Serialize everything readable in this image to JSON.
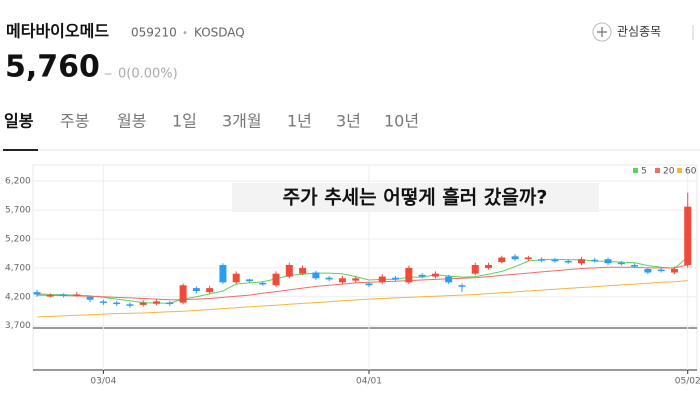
{
  "header": {
    "name": "메타바이오메드",
    "code": "059210",
    "separator": "•",
    "market": "KOSDAQ",
    "watch": "관심종목"
  },
  "quote": {
    "price": "5,760",
    "change_sign": "‒",
    "change": "0(0.00%)"
  },
  "tabs": [
    "일봉",
    "주봉",
    "월봉",
    "1일",
    "3개월",
    "1년",
    "3년",
    "10년"
  ],
  "selected_tab": 0,
  "chart_data": {
    "type": "candlestick",
    "annotation": "주가 추세는 어떻게 흘러 갔을까?",
    "up_color": "#f04a3a",
    "down_color": "#2a9df4",
    "categories": [
      null,
      null,
      null,
      null,
      null,
      "03/04",
      null,
      null,
      null,
      null,
      null,
      null,
      null,
      null,
      null,
      null,
      null,
      null,
      null,
      null,
      null,
      null,
      null,
      null,
      null,
      "04/01",
      null,
      null,
      null,
      null,
      null,
      null,
      null,
      null,
      null,
      null,
      null,
      null,
      null,
      null,
      null,
      null,
      null,
      null,
      null,
      null,
      null,
      null,
      null,
      "05/02"
    ],
    "open": [
      4280,
      4210,
      4240,
      4220,
      4200,
      4120,
      4100,
      4070,
      4060,
      4080,
      4100,
      4100,
      4350,
      4280,
      4750,
      4450,
      4500,
      4440,
      4400,
      4550,
      4600,
      4620,
      4530,
      4450,
      4480,
      4430,
      4450,
      4530,
      4450,
      4580,
      4550,
      4550,
      4400,
      4600,
      4700,
      4800,
      4900,
      4850,
      4850,
      4840,
      4820,
      4780,
      4840,
      4850,
      4790,
      4750,
      4680,
      4670,
      4620,
      4750
    ],
    "close": [
      4240,
      4230,
      4220,
      4240,
      4150,
      4100,
      4080,
      4050,
      4100,
      4120,
      4080,
      4400,
      4300,
      4350,
      4450,
      4600,
      4470,
      4420,
      4600,
      4750,
      4700,
      4520,
      4500,
      4520,
      4520,
      4400,
      4550,
      4500,
      4700,
      4550,
      4600,
      4450,
      4380,
      4750,
      4750,
      4880,
      4850,
      4880,
      4830,
      4820,
      4800,
      4850,
      4820,
      4780,
      4770,
      4730,
      4620,
      4650,
      4680,
      5760
    ],
    "high": [
      4320,
      4260,
      4260,
      4280,
      4220,
      4150,
      4130,
      4100,
      4140,
      4160,
      4130,
      4430,
      4380,
      4390,
      4780,
      4640,
      4510,
      4460,
      4640,
      4790,
      4740,
      4650,
      4560,
      4560,
      4560,
      4460,
      4590,
      4560,
      4740,
      4610,
      4640,
      4580,
      4430,
      4790,
      4790,
      4910,
      4940,
      4910,
      4880,
      4870,
      4850,
      4890,
      4870,
      4880,
      4820,
      4780,
      4710,
      4700,
      4720,
      6000
    ],
    "low": [
      4200,
      4190,
      4190,
      4200,
      4110,
      4060,
      4040,
      4010,
      4030,
      4050,
      4040,
      4070,
      4260,
      4250,
      4420,
      4420,
      4440,
      4390,
      4370,
      4520,
      4570,
      4490,
      4470,
      4420,
      4450,
      4370,
      4420,
      4470,
      4420,
      4520,
      4520,
      4420,
      4280,
      4570,
      4670,
      4780,
      4820,
      4820,
      4800,
      4790,
      4770,
      4750,
      4790,
      4750,
      4740,
      4700,
      4590,
      4620,
      4590,
      4700
    ],
    "series": [
      {
        "name": "5",
        "color": "#5bd25b",
        "values": [
          4250,
          4240,
          4235,
          4230,
          4215,
          4190,
          4160,
          4130,
          4100,
          4090,
          4090,
          4160,
          4200,
          4250,
          4300,
          4420,
          4440,
          4460,
          4510,
          4570,
          4590,
          4610,
          4610,
          4600,
          4550,
          4490,
          4500,
          4500,
          4540,
          4540,
          4580,
          4560,
          4540,
          4550,
          4590,
          4640,
          4720,
          4820,
          4840,
          4850,
          4840,
          4840,
          4820,
          4810,
          4800,
          4790,
          4740,
          4710,
          4690,
          4890
        ]
      },
      {
        "name": "20",
        "color": "#f26b6b",
        "values": [
          4230,
          4225,
          4220,
          4215,
          4210,
          4200,
          4190,
          4180,
          4170,
          4160,
          4150,
          4150,
          4160,
          4170,
          4190,
          4210,
          4230,
          4260,
          4290,
          4320,
          4350,
          4380,
          4400,
          4420,
          4440,
          4450,
          4460,
          4470,
          4480,
          4490,
          4500,
          4510,
          4520,
          4530,
          4550,
          4570,
          4590,
          4610,
          4630,
          4650,
          4670,
          4690,
          4700,
          4710,
          4710,
          4710,
          4700,
          4700,
          4700,
          4750
        ]
      },
      {
        "name": "60",
        "color": "#f5b63c",
        "values": [
          3850,
          3860,
          3870,
          3880,
          3890,
          3900,
          3910,
          3915,
          3920,
          3930,
          3940,
          3950,
          3965,
          3980,
          3995,
          4010,
          4025,
          4040,
          4055,
          4070,
          4085,
          4100,
          4115,
          4130,
          4145,
          4160,
          4170,
          4180,
          4190,
          4200,
          4210,
          4220,
          4230,
          4240,
          4255,
          4270,
          4285,
          4300,
          4315,
          4330,
          4345,
          4360,
          4375,
          4390,
          4405,
          4420,
          4435,
          4450,
          4460,
          4480
        ]
      }
    ],
    "ylim": [
      3660,
      6480
    ],
    "yticks": [
      {
        "value": 3700,
        "label": "3,700"
      },
      {
        "value": 4200,
        "label": "4,200"
      },
      {
        "value": 4700,
        "label": "4,700"
      },
      {
        "value": 5200,
        "label": "5,200"
      },
      {
        "value": 5700,
        "label": "5,700"
      },
      {
        "value": 6200,
        "label": "6,200"
      }
    ],
    "grid": true,
    "legend": "top-right"
  }
}
